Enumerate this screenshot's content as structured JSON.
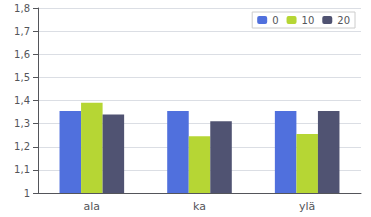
{
  "chart_data": {
    "type": "bar",
    "categories": [
      "ala",
      "ka",
      "ylä"
    ],
    "series": [
      {
        "name": "0",
        "values": [
          1.355,
          1.355,
          1.355
        ]
      },
      {
        "name": "10",
        "values": [
          1.39,
          1.245,
          1.255
        ]
      },
      {
        "name": "20",
        "values": [
          1.34,
          1.31,
          1.355
        ]
      }
    ],
    "ylim": [
      1.0,
      1.8
    ],
    "yticks": [
      1,
      {
        "value": 1.1,
        "label": "1,1"
      },
      {
        "value": 1.2,
        "label": "1,2"
      },
      {
        "value": 1.3,
        "label": "1,3"
      },
      {
        "value": 1.4,
        "label": "1,4"
      },
      {
        "value": 1.5,
        "label": "1,5"
      },
      {
        "value": 1.6,
        "label": "1,6"
      },
      {
        "value": 1.7,
        "label": "1,7"
      },
      {
        "value": 1.8,
        "label": "1,8"
      }
    ],
    "grid": true,
    "legend": "upper right"
  }
}
